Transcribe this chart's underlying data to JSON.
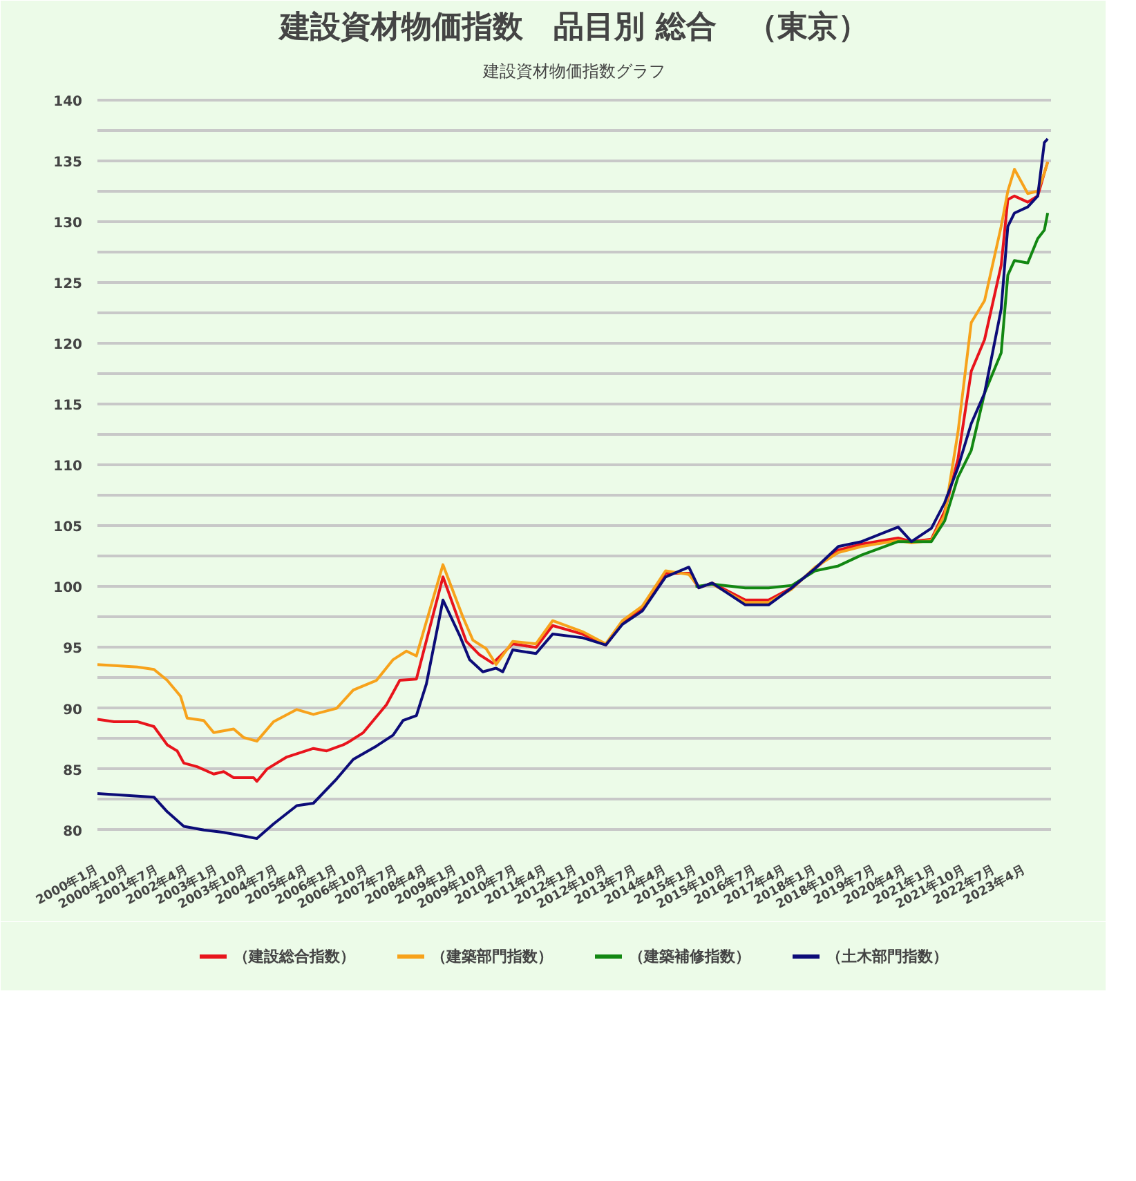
{
  "chart_data": {
    "type": "line",
    "subtitle": "建設資材物価指数グラフ",
    "title": "建設資材物価指数　品目別 総合　（東京）",
    "xlim": [
      "2000-01",
      "2023-12"
    ],
    "xticks": [
      {
        "value": "2000-01",
        "label": "2000年1月"
      },
      {
        "value": "2000-10",
        "label": "2000年10月"
      },
      {
        "value": "2001-07",
        "label": "2001年7月"
      },
      {
        "value": "2002-04",
        "label": "2002年4月"
      },
      {
        "value": "2003-01",
        "label": "2003年1月"
      },
      {
        "value": "2003-10",
        "label": "2003年10月"
      },
      {
        "value": "2004-07",
        "label": "2004年7月"
      },
      {
        "value": "2005-04",
        "label": "2005年4月"
      },
      {
        "value": "2006-01",
        "label": "2006年1月"
      },
      {
        "value": "2006-10",
        "label": "2006年10月"
      },
      {
        "value": "2007-07",
        "label": "2007年7月"
      },
      {
        "value": "2008-04",
        "label": "2008年4月"
      },
      {
        "value": "2009-01",
        "label": "2009年1月"
      },
      {
        "value": "2009-10",
        "label": "2009年10月"
      },
      {
        "value": "2010-07",
        "label": "2010年7月"
      },
      {
        "value": "2011-04",
        "label": "2011年4月"
      },
      {
        "value": "2012-01",
        "label": "2012年1月"
      },
      {
        "value": "2012-10",
        "label": "2012年10月"
      },
      {
        "value": "2013-07",
        "label": "2013年7月"
      },
      {
        "value": "2014-04",
        "label": "2014年4月"
      },
      {
        "value": "2015-01",
        "label": "2015年1月"
      },
      {
        "value": "2015-10",
        "label": "2015年10月"
      },
      {
        "value": "2016-07",
        "label": "2016年7月"
      },
      {
        "value": "2017-04",
        "label": "2017年4月"
      },
      {
        "value": "2018-01",
        "label": "2018年1月"
      },
      {
        "value": "2018-10",
        "label": "2018年10月"
      },
      {
        "value": "2019-07",
        "label": "2019年7月"
      },
      {
        "value": "2020-04",
        "label": "2020年4月"
      },
      {
        "value": "2021-01",
        "label": "2021年1月"
      },
      {
        "value": "2021-10",
        "label": "2021年10月"
      },
      {
        "value": "2022-07",
        "label": "2022年7月"
      },
      {
        "value": "2023-04",
        "label": "2023年4月"
      }
    ],
    "ylim": [
      78,
      141
    ],
    "yticks": [
      80,
      {
        "value": 82.5,
        "label": null
      },
      85,
      {
        "value": 87.5,
        "label": null
      },
      90,
      {
        "value": 92.5,
        "label": null
      },
      95,
      {
        "value": 97.5,
        "label": null
      },
      100,
      {
        "value": 102.5,
        "label": null
      },
      105,
      {
        "value": 107.5,
        "label": null
      },
      110,
      {
        "value": 112.5,
        "label": null
      },
      115,
      {
        "value": 117.5,
        "label": null
      },
      120,
      {
        "value": 122.5,
        "label": null
      },
      125,
      {
        "value": 127.5,
        "label": null
      },
      130,
      {
        "value": 132.5,
        "label": null
      },
      135,
      {
        "value": 137.5,
        "label": null
      },
      140
    ],
    "grid": "y",
    "legend": "bottom",
    "marker": "none",
    "line_style": "solid",
    "series": [
      {
        "name": "（建設総合指数）",
        "color": "#e8141c",
        "x": [
          "2000-01",
          "2000-06",
          "2001-01",
          "2001-06",
          "2001-10",
          "2002-01",
          "2002-03",
          "2002-07",
          "2002-12",
          "2003-03",
          "2003-06",
          "2003-12",
          "2004-01",
          "2004-04",
          "2004-10",
          "2005-06",
          "2005-10",
          "2006-03",
          "2006-05",
          "2006-09",
          "2007-04",
          "2007-08",
          "2008-01",
          "2008-09",
          "2009-04",
          "2009-08",
          "2009-12",
          "2010-06",
          "2011-01",
          "2011-06",
          "2012-03",
          "2012-10",
          "2013-03",
          "2013-09",
          "2014-04",
          "2014-11",
          "2015-02",
          "2015-06",
          "2016-04",
          "2016-11",
          "2017-06",
          "2018-01",
          "2018-08",
          "2019-03",
          "2020-02",
          "2020-06",
          "2020-12",
          "2021-04",
          "2021-08",
          "2021-12",
          "2022-04",
          "2022-09",
          "2022-11",
          "2023-01",
          "2023-05",
          "2023-08",
          "2023-10",
          "2023-11"
        ],
        "values": [
          89.1,
          88.9,
          88.9,
          88.5,
          87.0,
          86.5,
          85.5,
          85.2,
          84.6,
          84.8,
          84.3,
          84.3,
          84.0,
          85.0,
          86.0,
          86.7,
          86.5,
          87.0,
          87.3,
          88.0,
          90.3,
          92.3,
          92.4,
          100.8,
          95.5,
          94.4,
          93.7,
          95.3,
          95.0,
          96.8,
          96.1,
          95.2,
          97.0,
          98.2,
          101.1,
          101.1,
          99.9,
          100.3,
          98.9,
          98.9,
          99.9,
          101.5,
          103.0,
          103.5,
          104.0,
          103.7,
          103.9,
          106.2,
          110.5,
          117.7,
          120.3,
          126.4,
          131.8,
          132.1,
          131.6,
          132.1,
          134.0,
          134.9
        ]
      },
      {
        "name": "（建築部門指数）",
        "color": "#f7a21b",
        "x": [
          "2000-01",
          "2001-01",
          "2001-06",
          "2001-10",
          "2002-02",
          "2002-04",
          "2002-09",
          "2002-12",
          "2003-06",
          "2003-09",
          "2004-01",
          "2004-06",
          "2005-01",
          "2005-06",
          "2006-01",
          "2006-06",
          "2007-01",
          "2007-06",
          "2007-10",
          "2008-01",
          "2008-09",
          "2009-03",
          "2009-06",
          "2009-10",
          "2010-01",
          "2010-06",
          "2011-01",
          "2011-06",
          "2012-03",
          "2012-10",
          "2013-03",
          "2013-09",
          "2014-04",
          "2014-11",
          "2015-02",
          "2015-06",
          "2016-04",
          "2016-11",
          "2017-06",
          "2018-01",
          "2018-08",
          "2019-03",
          "2020-02",
          "2020-06",
          "2020-12",
          "2021-04",
          "2021-08",
          "2021-12",
          "2022-04",
          "2022-09",
          "2022-11",
          "2023-01",
          "2023-05",
          "2023-08",
          "2023-10",
          "2023-11"
        ],
        "values": [
          93.6,
          93.4,
          93.2,
          92.3,
          91.0,
          89.2,
          89.0,
          88.0,
          88.3,
          87.6,
          87.3,
          88.9,
          89.9,
          89.5,
          90.0,
          91.5,
          92.3,
          94.0,
          94.7,
          94.3,
          101.8,
          97.5,
          95.6,
          94.9,
          93.6,
          95.5,
          95.3,
          97.2,
          96.3,
          95.3,
          97.2,
          98.4,
          101.3,
          101.0,
          100.0,
          100.2,
          98.7,
          98.7,
          99.8,
          101.6,
          102.8,
          103.3,
          103.8,
          103.6,
          103.8,
          105.9,
          112.7,
          121.7,
          123.5,
          129.6,
          132.5,
          134.3,
          132.3,
          132.5,
          134.0,
          134.9
        ]
      },
      {
        "name": "（建築補修指数）",
        "color": "#128712",
        "x": [
          "2015-01",
          "2015-06",
          "2016-04",
          "2016-11",
          "2017-06",
          "2018-01",
          "2018-08",
          "2019-03",
          "2020-02",
          "2020-06",
          "2020-12",
          "2021-04",
          "2021-08",
          "2021-12",
          "2022-04",
          "2022-09",
          "2022-11",
          "2023-01",
          "2023-05",
          "2023-08",
          "2023-10",
          "2023-11"
        ],
        "values": [
          100.0,
          100.2,
          99.9,
          99.9,
          100.1,
          101.3,
          101.7,
          102.6,
          103.7,
          103.7,
          103.7,
          105.4,
          109.0,
          111.2,
          115.9,
          119.2,
          125.6,
          126.8,
          126.6,
          128.6,
          129.3,
          130.7
        ]
      },
      {
        "name": "（土木部門指数）",
        "color": "#0c0c78",
        "x": [
          "2000-01",
          "2001-06",
          "2001-10",
          "2002-03",
          "2002-09",
          "2003-03",
          "2003-09",
          "2004-01",
          "2004-06",
          "2005-01",
          "2005-06",
          "2006-01",
          "2006-06",
          "2007-01",
          "2007-06",
          "2007-09",
          "2008-01",
          "2008-04",
          "2008-09",
          "2009-02",
          "2009-05",
          "2009-09",
          "2010-01",
          "2010-03",
          "2010-06",
          "2011-01",
          "2011-06",
          "2012-03",
          "2012-10",
          "2013-03",
          "2013-09",
          "2014-04",
          "2014-11",
          "2015-02",
          "2015-06",
          "2016-04",
          "2016-11",
          "2017-06",
          "2018-01",
          "2018-08",
          "2019-03",
          "2020-02",
          "2020-06",
          "2020-12",
          "2021-04",
          "2021-08",
          "2021-12",
          "2022-04",
          "2022-09",
          "2022-11",
          "2023-01",
          "2023-05",
          "2023-08",
          "2023-10",
          "2023-11"
        ],
        "values": [
          83.0,
          82.7,
          81.5,
          80.3,
          80.0,
          79.8,
          79.5,
          79.3,
          80.5,
          82.0,
          82.2,
          84.2,
          85.8,
          86.9,
          87.8,
          89.0,
          89.4,
          92.0,
          98.9,
          96.0,
          94.0,
          93.0,
          93.3,
          93.0,
          94.8,
          94.5,
          96.1,
          95.8,
          95.2,
          96.9,
          98.0,
          100.8,
          101.6,
          99.9,
          100.3,
          98.5,
          98.5,
          99.9,
          101.5,
          103.3,
          103.7,
          104.9,
          103.7,
          104.8,
          106.9,
          109.8,
          113.4,
          115.9,
          122.8,
          129.6,
          130.7,
          131.2,
          132.1,
          136.5,
          136.8
        ]
      }
    ]
  }
}
